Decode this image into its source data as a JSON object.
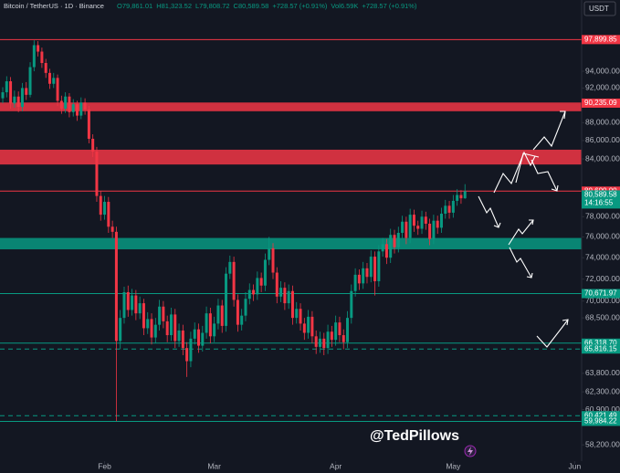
{
  "chart_data": {
    "type": "candlestick",
    "header": {
      "symbol": "Bitcoin / TetherUS · 1D · Binance",
      "stats": [
        "O79,861.01",
        "H81,323.52",
        "L79,808.72",
        "C80,589.58",
        "+728.57 (+0.91%)",
        "Vol6.59K",
        "+728.57 (+0.91%)"
      ]
    },
    "currency": "USDT",
    "watermark": "@TedPillows",
    "up_color": "#089981",
    "down_color": "#f23645",
    "log_scale": true,
    "ylim": [
      57000,
      103000
    ],
    "yticks": [
      {
        "value": 94000,
        "label": "94,000.00"
      },
      {
        "value": 92000,
        "label": "92,000.00"
      },
      {
        "value": 88000,
        "label": "88,000.00"
      },
      {
        "value": 86000,
        "label": "86,000.00"
      },
      {
        "value": 84000,
        "label": "84,000.00"
      },
      {
        "value": 78000,
        "label": "78,000.00"
      },
      {
        "value": 76000,
        "label": "76,000.00"
      },
      {
        "value": 74000,
        "label": "74,000.00"
      },
      {
        "value": 72000,
        "label": "72,000.00"
      },
      {
        "value": 70000,
        "label": "70,000.00"
      },
      {
        "value": 68500,
        "label": "68,500.00"
      },
      {
        "value": 63800,
        "label": "63,800.00"
      },
      {
        "value": 62300,
        "label": "62,300.00"
      },
      {
        "value": 60900,
        "label": "60,900.00"
      },
      {
        "value": 58200,
        "label": "58,200.00"
      }
    ],
    "xticks": [
      {
        "value": 26,
        "label": "Feb"
      },
      {
        "value": 54,
        "label": "Mar"
      },
      {
        "value": 85,
        "label": "Apr"
      },
      {
        "value": 115,
        "label": "May"
      },
      {
        "value": 146,
        "label": "Jun"
      }
    ],
    "zones": [
      {
        "low": 89300,
        "high": 90200,
        "color": "#f23645"
      },
      {
        "low": 83400,
        "high": 85000,
        "color": "#f23645"
      },
      {
        "low": 74800,
        "high": 75900,
        "color": "#089981"
      }
    ],
    "levels": [
      {
        "value": 97899.85,
        "label": "97,899.85",
        "color": "#f23645",
        "dashed": false
      },
      {
        "value": 90235.09,
        "label": "90,235.09",
        "color": "#f23645",
        "dashed": false
      },
      {
        "value": 80600,
        "label": "80,600.00",
        "color": "#f23645",
        "dashed": false
      },
      {
        "value": 70671.97,
        "label": "70,671.97",
        "color": "#089981",
        "dashed": false
      },
      {
        "value": 66318.7,
        "label": "66,318.70",
        "color": "#089981",
        "dashed": false
      },
      {
        "value": 65816.15,
        "label": "65,816.15",
        "color": "#089981",
        "dashed": true
      },
      {
        "value": 60421.49,
        "label": "60,421.49",
        "color": "#089981",
        "dashed": true
      },
      {
        "value": 59984.22,
        "label": "59,984.22",
        "color": "#089981",
        "dashed": false
      }
    ],
    "last_price": {
      "value": 80589.58,
      "label": "80,589.58",
      "countdown": "14:16:55"
    },
    "open": [
      90800,
      91500,
      92800,
      90200,
      91000,
      89800,
      92000,
      91200,
      94500,
      97200,
      96400,
      95000,
      93800,
      92500,
      93200,
      90500,
      89600,
      91000,
      89200,
      90100,
      88800,
      90300,
      89500,
      86200,
      84800,
      80100,
      78200,
      79500,
      77000,
      76500,
      66500,
      68500,
      70800,
      69200,
      70500,
      68900,
      69800,
      67600,
      68400,
      66800,
      67900,
      69500,
      68200,
      67000,
      68800,
      66500,
      67400,
      65900,
      64800,
      66700,
      67500,
      66100,
      67200,
      68900,
      66900,
      68000,
      69600,
      67800,
      72500,
      73600,
      70100,
      67900,
      68700,
      70200,
      71000,
      70600,
      72100,
      71400,
      73800,
      74900,
      72600,
      70400,
      71200,
      69800,
      70900,
      68500,
      69300,
      68000,
      67200,
      68600,
      66900,
      66000,
      66700,
      65900,
      67300,
      66600,
      68100,
      67000,
      66400,
      68500,
      70900,
      72400,
      71600,
      73000,
      72200,
      74100,
      71800,
      74600,
      75300,
      74000,
      76200,
      75000,
      76400,
      77500,
      75900,
      78200,
      77100,
      76800,
      78000,
      77300,
      75800,
      77600,
      76900,
      78300,
      79100,
      78400,
      79600,
      80200,
      79861.01
    ],
    "high": [
      92100,
      93400,
      93300,
      91700,
      91600,
      92600,
      92700,
      95100,
      97800,
      97700,
      96900,
      95500,
      94300,
      93800,
      93600,
      91100,
      91500,
      91400,
      90700,
      90500,
      90900,
      90800,
      89900,
      86700,
      85300,
      80600,
      80100,
      80000,
      77600,
      77000,
      69200,
      71300,
      71400,
      71100,
      71000,
      70400,
      70200,
      69000,
      68900,
      68500,
      70100,
      70000,
      68700,
      69400,
      69300,
      68000,
      67900,
      66400,
      67300,
      68100,
      68000,
      67800,
      69500,
      69400,
      68600,
      70200,
      70100,
      73100,
      74200,
      74100,
      70600,
      69300,
      70800,
      71600,
      71500,
      72700,
      72600,
      74400,
      76000,
      75400,
      73100,
      71800,
      71700,
      71500,
      71400,
      69900,
      69800,
      68500,
      69200,
      69100,
      67400,
      67300,
      67200,
      67900,
      67800,
      68700,
      68600,
      67500,
      69100,
      71500,
      73000,
      72900,
      73600,
      73500,
      74700,
      74600,
      75200,
      75900,
      75800,
      76800,
      76700,
      77000,
      78100,
      78000,
      78800,
      78700,
      77600,
      78600,
      78500,
      77800,
      78200,
      78100,
      78900,
      79700,
      79600,
      80200,
      80800,
      80700,
      81323.52
    ],
    "low": [
      90200,
      90900,
      89600,
      89700,
      89200,
      89300,
      90600,
      90900,
      94000,
      95800,
      94400,
      93200,
      91900,
      92000,
      89900,
      89000,
      89100,
      88600,
      88700,
      88200,
      88400,
      88900,
      85700,
      84200,
      79500,
      77600,
      77700,
      76400,
      75900,
      60000,
      65800,
      68000,
      68600,
      68700,
      68300,
      68400,
      67000,
      67100,
      66200,
      66300,
      67400,
      67600,
      66400,
      66500,
      65900,
      66000,
      65300,
      63500,
      64300,
      66200,
      65500,
      65600,
      66700,
      66300,
      66400,
      67500,
      67200,
      67300,
      72000,
      69500,
      67300,
      67400,
      68200,
      69700,
      70000,
      70100,
      70800,
      70900,
      73300,
      72000,
      69800,
      69900,
      69200,
      69300,
      67900,
      68000,
      67400,
      66600,
      66700,
      66300,
      65400,
      65500,
      65300,
      65400,
      66000,
      66100,
      66400,
      65800,
      65900,
      68000,
      70400,
      71000,
      71100,
      71600,
      71700,
      70500,
      71300,
      74100,
      73400,
      73500,
      74400,
      74500,
      75900,
      75300,
      75400,
      76500,
      76200,
      76300,
      76700,
      75200,
      75300,
      76300,
      76400,
      77800,
      77800,
      77900,
      79100,
      79300,
      79808.72
    ],
    "close": [
      91500,
      92800,
      90200,
      91000,
      89800,
      92000,
      91200,
      94500,
      97200,
      96400,
      95000,
      93800,
      92500,
      93200,
      90500,
      89600,
      91000,
      89200,
      90100,
      88800,
      90300,
      89500,
      86200,
      84800,
      80100,
      78200,
      79500,
      77000,
      76500,
      66500,
      68500,
      70800,
      69200,
      70500,
      68900,
      69800,
      67600,
      68400,
      66800,
      67900,
      69500,
      68200,
      67000,
      68800,
      66500,
      67400,
      65900,
      64800,
      66700,
      67500,
      66100,
      67200,
      68900,
      66900,
      68000,
      69600,
      67800,
      72500,
      73600,
      70100,
      67900,
      68700,
      70200,
      71000,
      70600,
      72100,
      71400,
      73800,
      74900,
      72600,
      70400,
      71200,
      69800,
      70900,
      68500,
      69300,
      68000,
      67200,
      68600,
      66900,
      66000,
      66700,
      65900,
      67300,
      66600,
      68100,
      67000,
      66400,
      68500,
      70900,
      72400,
      71600,
      73000,
      72200,
      74100,
      71800,
      74600,
      75300,
      74000,
      76200,
      75000,
      76400,
      77500,
      75900,
      78200,
      77100,
      76800,
      78000,
      77300,
      75800,
      77600,
      76900,
      78300,
      79100,
      78400,
      79600,
      80200,
      79861.01,
      80589.58
    ]
  }
}
